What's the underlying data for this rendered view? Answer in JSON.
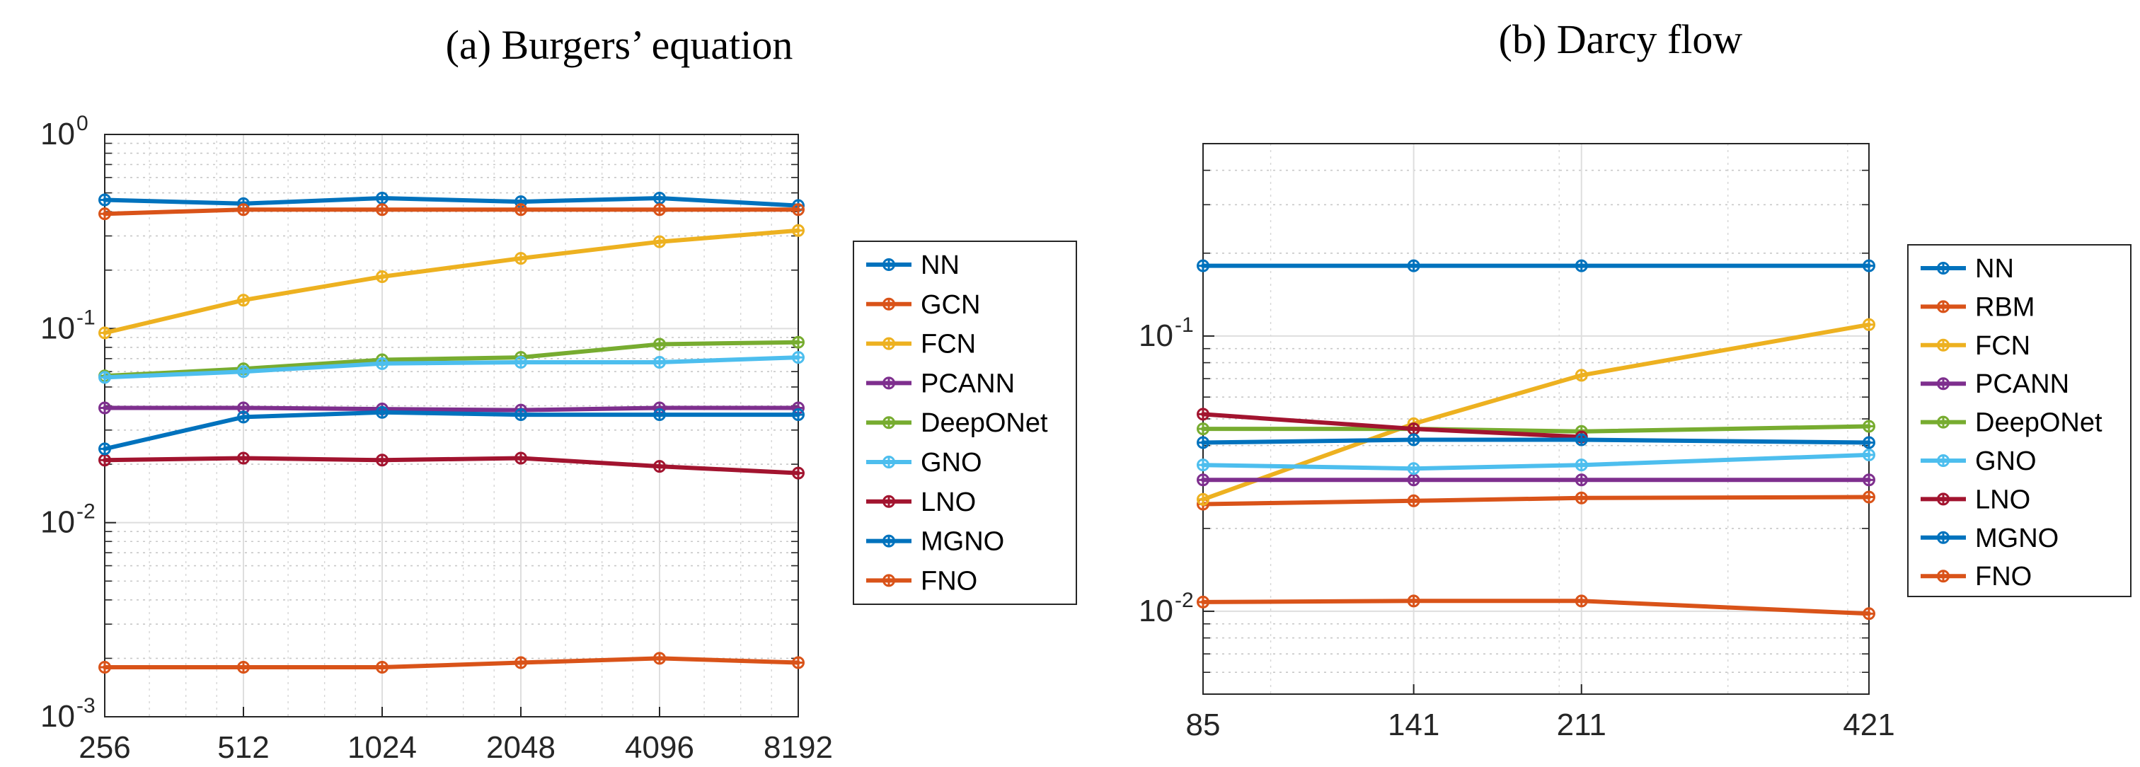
{
  "chart_data": [
    {
      "type": "line",
      "title": "(a) Burgers’ equation",
      "xlabel": "",
      "ylabel": "",
      "x_scale": "log2",
      "y_scale": "log10",
      "categories": [
        "256",
        "512",
        "1024",
        "2048",
        "4096",
        "8192"
      ],
      "x": [
        256,
        512,
        1024,
        2048,
        4096,
        8192
      ],
      "xlim": [
        256,
        8192
      ],
      "ylim": [
        0.001,
        1
      ],
      "yticks": [
        {
          "base": "10",
          "exp": "0"
        },
        {
          "base": "10",
          "exp": "-1"
        },
        {
          "base": "10",
          "exp": "-2"
        },
        {
          "base": "10",
          "exp": "-3"
        }
      ],
      "grid": true,
      "legend_position": "outside-right",
      "series": [
        {
          "name": "NN",
          "color": "#0072BD",
          "values": [
            0.46,
            0.44,
            0.47,
            0.45,
            0.47,
            0.43
          ]
        },
        {
          "name": "GCN",
          "color": "#D95319",
          "values": [
            0.39,
            0.41,
            0.41,
            0.41,
            0.41,
            0.41
          ]
        },
        {
          "name": "FCN",
          "color": "#EDB120",
          "values": [
            0.095,
            0.14,
            0.185,
            0.23,
            0.28,
            0.32
          ]
        },
        {
          "name": "PCANN",
          "color": "#7E2F8E",
          "values": [
            0.039,
            0.039,
            0.0385,
            0.038,
            0.039,
            0.039
          ]
        },
        {
          "name": "DeepONet",
          "color": "#77AC30",
          "values": [
            0.057,
            0.062,
            0.069,
            0.071,
            0.083,
            0.085
          ]
        },
        {
          "name": "GNO",
          "color": "#4DBEEE",
          "values": [
            0.056,
            0.06,
            0.066,
            0.067,
            0.067,
            0.071
          ]
        },
        {
          "name": "LNO",
          "color": "#A2142F",
          "values": [
            0.021,
            0.0215,
            0.021,
            0.0215,
            0.0195,
            0.018
          ]
        },
        {
          "name": "MGNO",
          "color": "#0072BD",
          "values": [
            0.024,
            0.035,
            0.037,
            0.036,
            0.036,
            0.036
          ]
        },
        {
          "name": "FNO",
          "color": "#D95319",
          "values": [
            0.0018,
            0.0018,
            0.0018,
            0.0019,
            0.002,
            0.0019
          ]
        }
      ]
    },
    {
      "type": "line",
      "title": "(b) Darcy flow",
      "xlabel": "",
      "ylabel": "",
      "x_scale": "log",
      "y_scale": "log10",
      "categories": [
        "85",
        "141",
        "211",
        "421"
      ],
      "x": [
        85,
        141,
        211,
        421
      ],
      "xlim": [
        85,
        421
      ],
      "ylim": [
        0.005,
        0.5
      ],
      "yticks": [
        {
          "base": "10",
          "exp": "-1"
        },
        {
          "base": "10",
          "exp": "-2"
        }
      ],
      "grid": true,
      "legend_position": "outside-right",
      "series": [
        {
          "name": "NN",
          "color": "#0072BD",
          "values": [
            0.18,
            0.18,
            0.18,
            0.18
          ]
        },
        {
          "name": "RBM",
          "color": "#D95319",
          "values": [
            0.0245,
            0.0252,
            0.0258,
            0.026
          ]
        },
        {
          "name": "FCN",
          "color": "#EDB120",
          "values": [
            0.0255,
            0.048,
            0.072,
            0.11
          ]
        },
        {
          "name": "PCANN",
          "color": "#7E2F8E",
          "values": [
            0.03,
            0.03,
            0.03,
            0.03
          ]
        },
        {
          "name": "DeepONet",
          "color": "#77AC30",
          "values": [
            0.046,
            0.046,
            0.045,
            0.047
          ]
        },
        {
          "name": "GNO",
          "color": "#4DBEEE",
          "values": [
            0.034,
            0.033,
            0.034,
            0.037
          ]
        },
        {
          "name": "LNO",
          "color": "#A2142F",
          "values": [
            0.052,
            0.046,
            0.043,
            null
          ]
        },
        {
          "name": "MGNO",
          "color": "#0072BD",
          "values": [
            0.041,
            0.042,
            0.042,
            0.041
          ]
        },
        {
          "name": "FNO",
          "color": "#D95319",
          "values": [
            0.0108,
            0.0109,
            0.0109,
            0.0098
          ]
        }
      ]
    }
  ]
}
